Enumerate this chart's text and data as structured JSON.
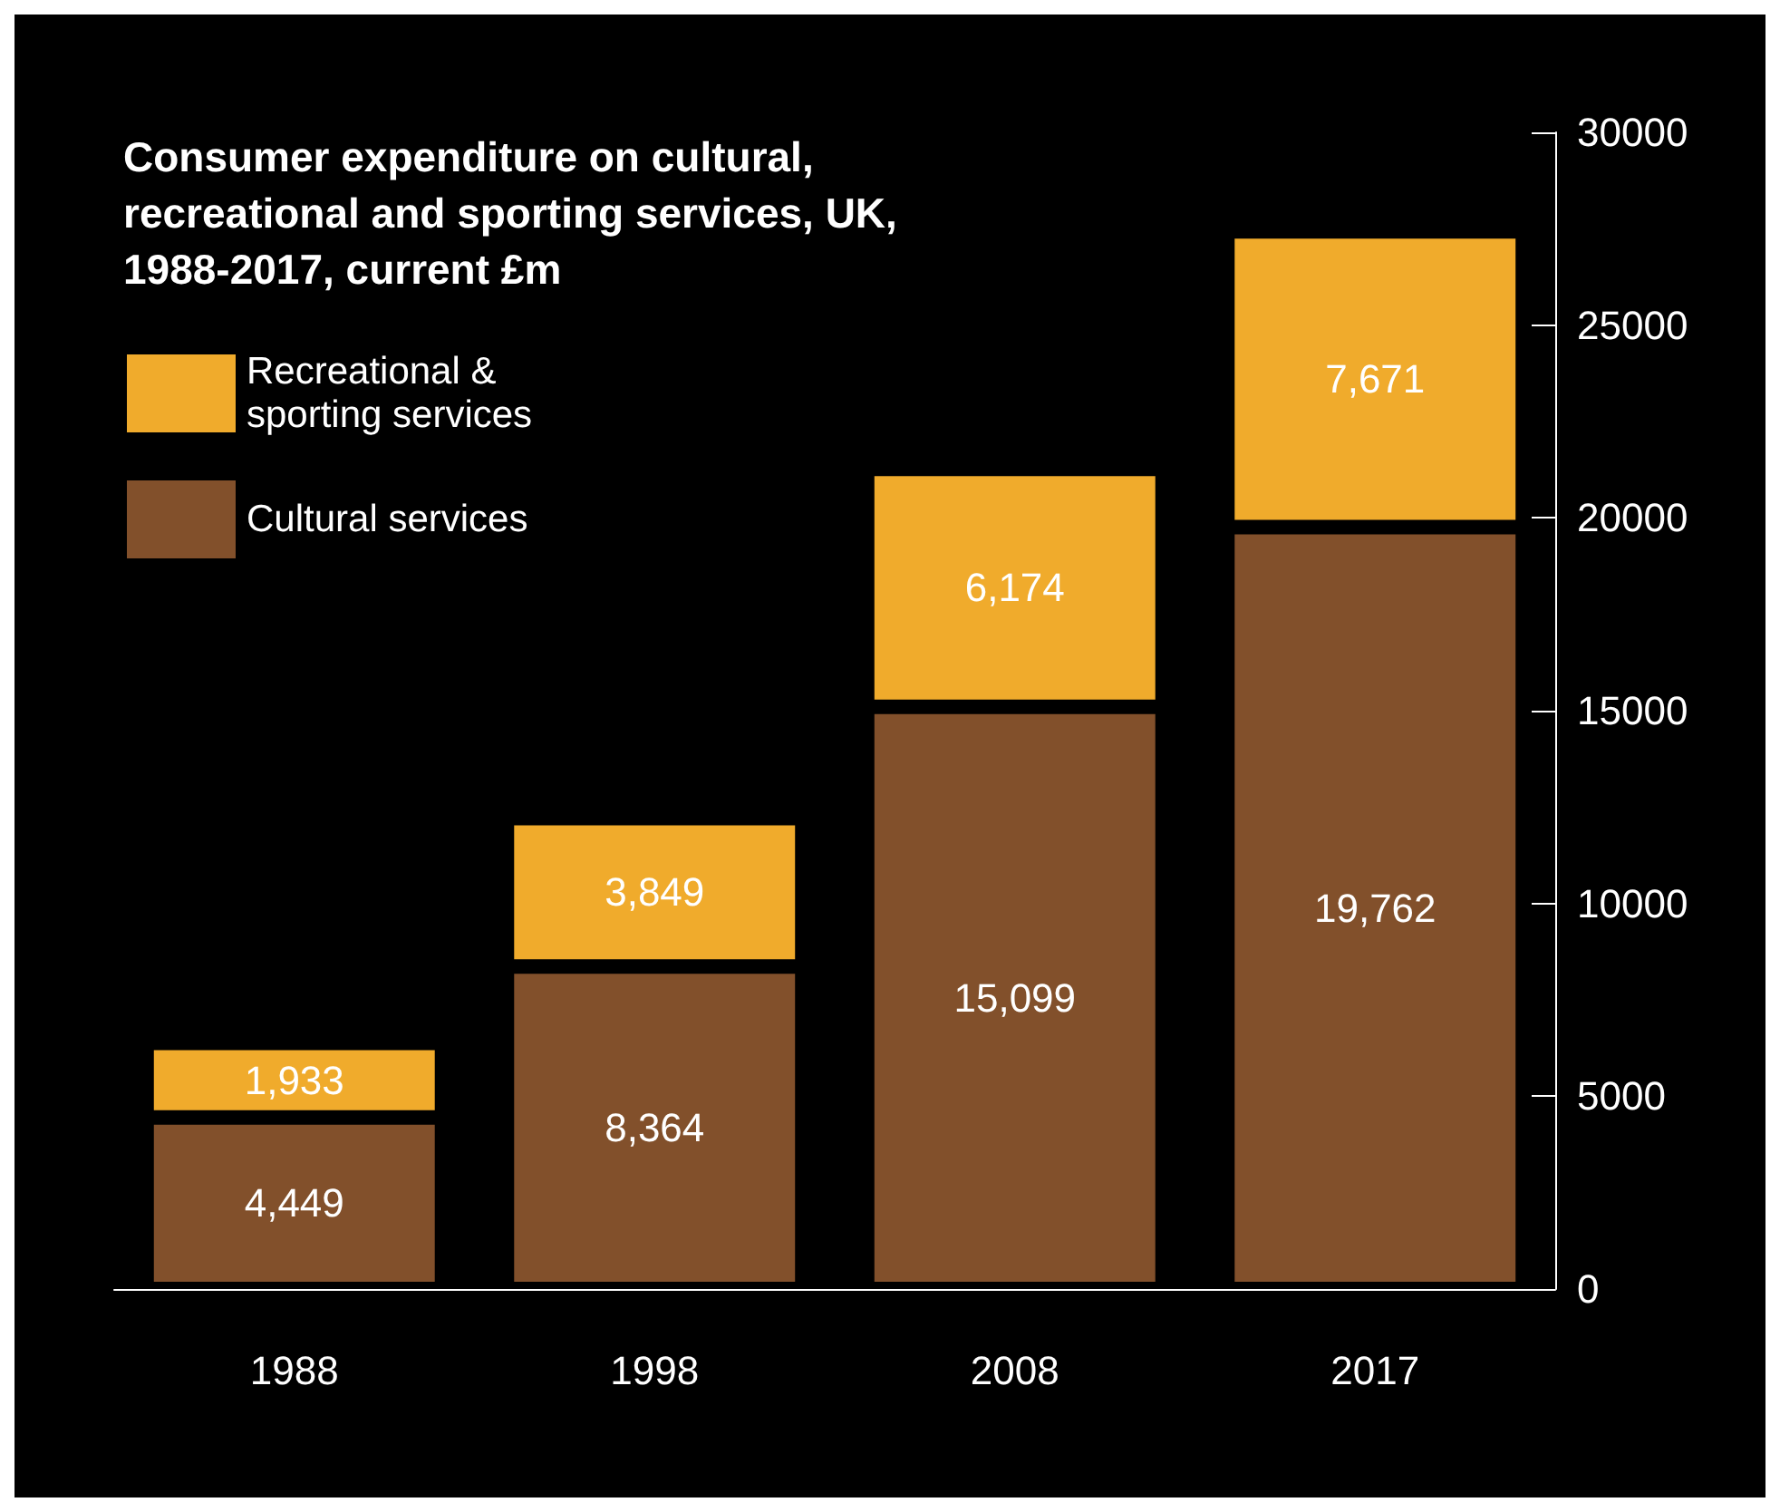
{
  "chart_data": {
    "type": "bar",
    "title": "Consumer expenditure on cultural, recreational and sporting services, UK, 1988-2017, current £m",
    "categories": [
      "1988",
      "1998",
      "2008",
      "2017"
    ],
    "series": [
      {
        "name": "Cultural services",
        "color": "#82502b",
        "values": [
          4449,
          8364,
          15099,
          19762
        ],
        "value_labels": [
          "4,449",
          "8,364",
          "15,099",
          "19,762"
        ]
      },
      {
        "name": "Recreational & sporting services",
        "color": "#f0ab2c",
        "values": [
          1933,
          3849,
          6174,
          7671
        ],
        "value_labels": [
          "1,933",
          "3,849",
          "6,174",
          "7,671"
        ]
      }
    ],
    "stacked": true,
    "legend": "top left",
    "grid": false,
    "ylim": [
      0,
      30000
    ],
    "yticks": [
      0,
      5000,
      10000,
      15000,
      20000,
      25000,
      30000
    ]
  }
}
